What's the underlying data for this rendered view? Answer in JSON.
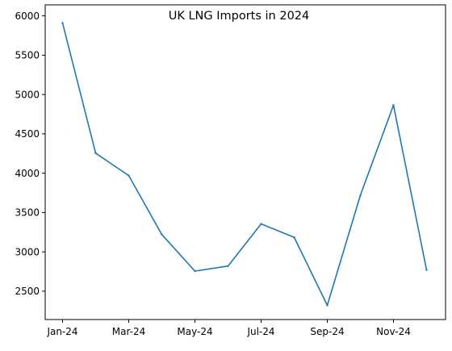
{
  "chart_data": {
    "type": "line",
    "title": "UK LNG Imports in 2024",
    "xlabel": "",
    "ylabel": "",
    "x": [
      "Jan-24",
      "Feb-24",
      "Mar-24",
      "Apr-24",
      "May-24",
      "Jun-24",
      "Jul-24",
      "Aug-24",
      "Sep-24",
      "Oct-24",
      "Nov-24",
      "Dec-24"
    ],
    "x_ticks": [
      "Jan-24",
      "Mar-24",
      "May-24",
      "Jul-24",
      "Sep-24",
      "Nov-24"
    ],
    "y_ticks": [
      2500,
      3000,
      3500,
      4000,
      4500,
      5000,
      5500,
      6000
    ],
    "ylim": [
      2140,
      6140
    ],
    "grid": false,
    "series": [
      {
        "values": [
          5910,
          4255,
          3970,
          3220,
          2755,
          2820,
          3355,
          3185,
          2320,
          3720,
          4865,
          2770
        ],
        "color": "#1f77b4"
      }
    ]
  }
}
